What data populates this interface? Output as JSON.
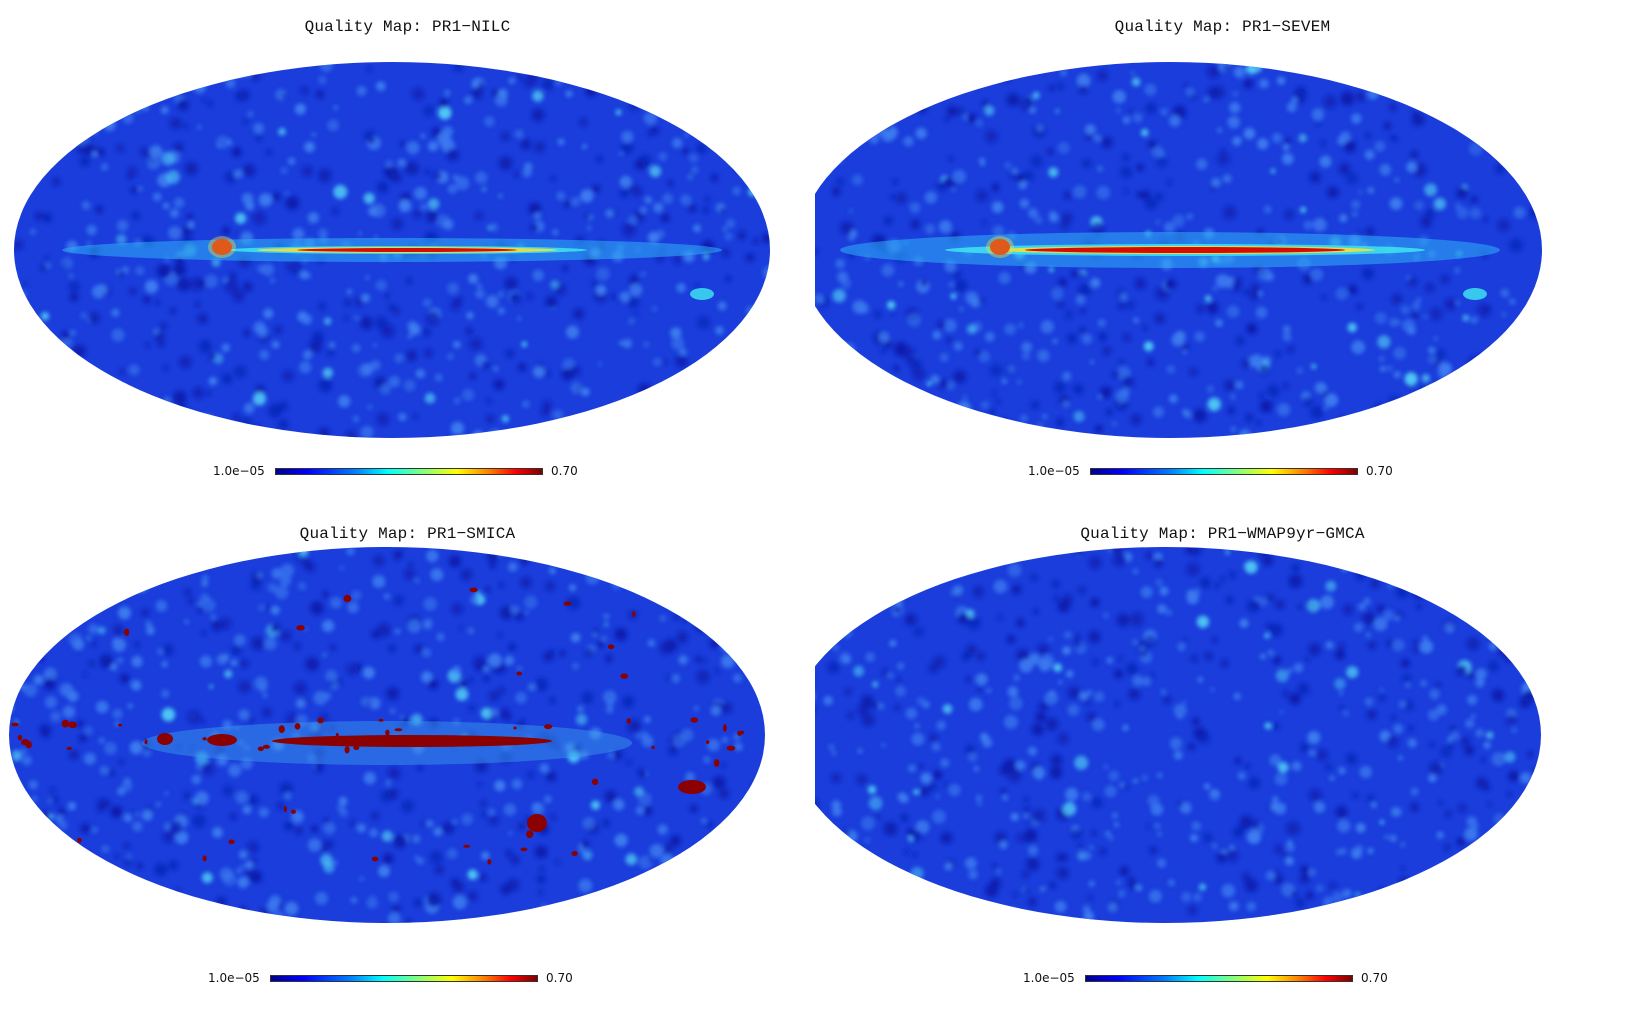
{
  "panels": [
    {
      "title": "Quality Map: PR1−NILC",
      "cbar_min": "1.0e−05",
      "cbar_max": "0.70",
      "band": "medium",
      "masked": false
    },
    {
      "title": "Quality Map: PR1−SEVEM",
      "cbar_min": "1.0e−05",
      "cbar_max": "0.70",
      "band": "strong",
      "masked": false
    },
    {
      "title": "Quality Map: PR1−SMICA",
      "cbar_min": "1.0e−05",
      "cbar_max": "0.70",
      "band": "masked",
      "masked": true
    },
    {
      "title": "Quality Map: PR1−WMAP9yr−GMCA",
      "cbar_min": "1.0e−05",
      "cbar_max": "0.70",
      "band": "none",
      "masked": false
    }
  ],
  "colors": {
    "map_background": "#1a3ddb",
    "map_deep": "#0a1fb0",
    "map_light": "#3d7cf0",
    "hot_red": "#d40000",
    "mask_red": "#8b0000",
    "cyan": "#3fe0f0",
    "yellow": "#f0e040"
  }
}
